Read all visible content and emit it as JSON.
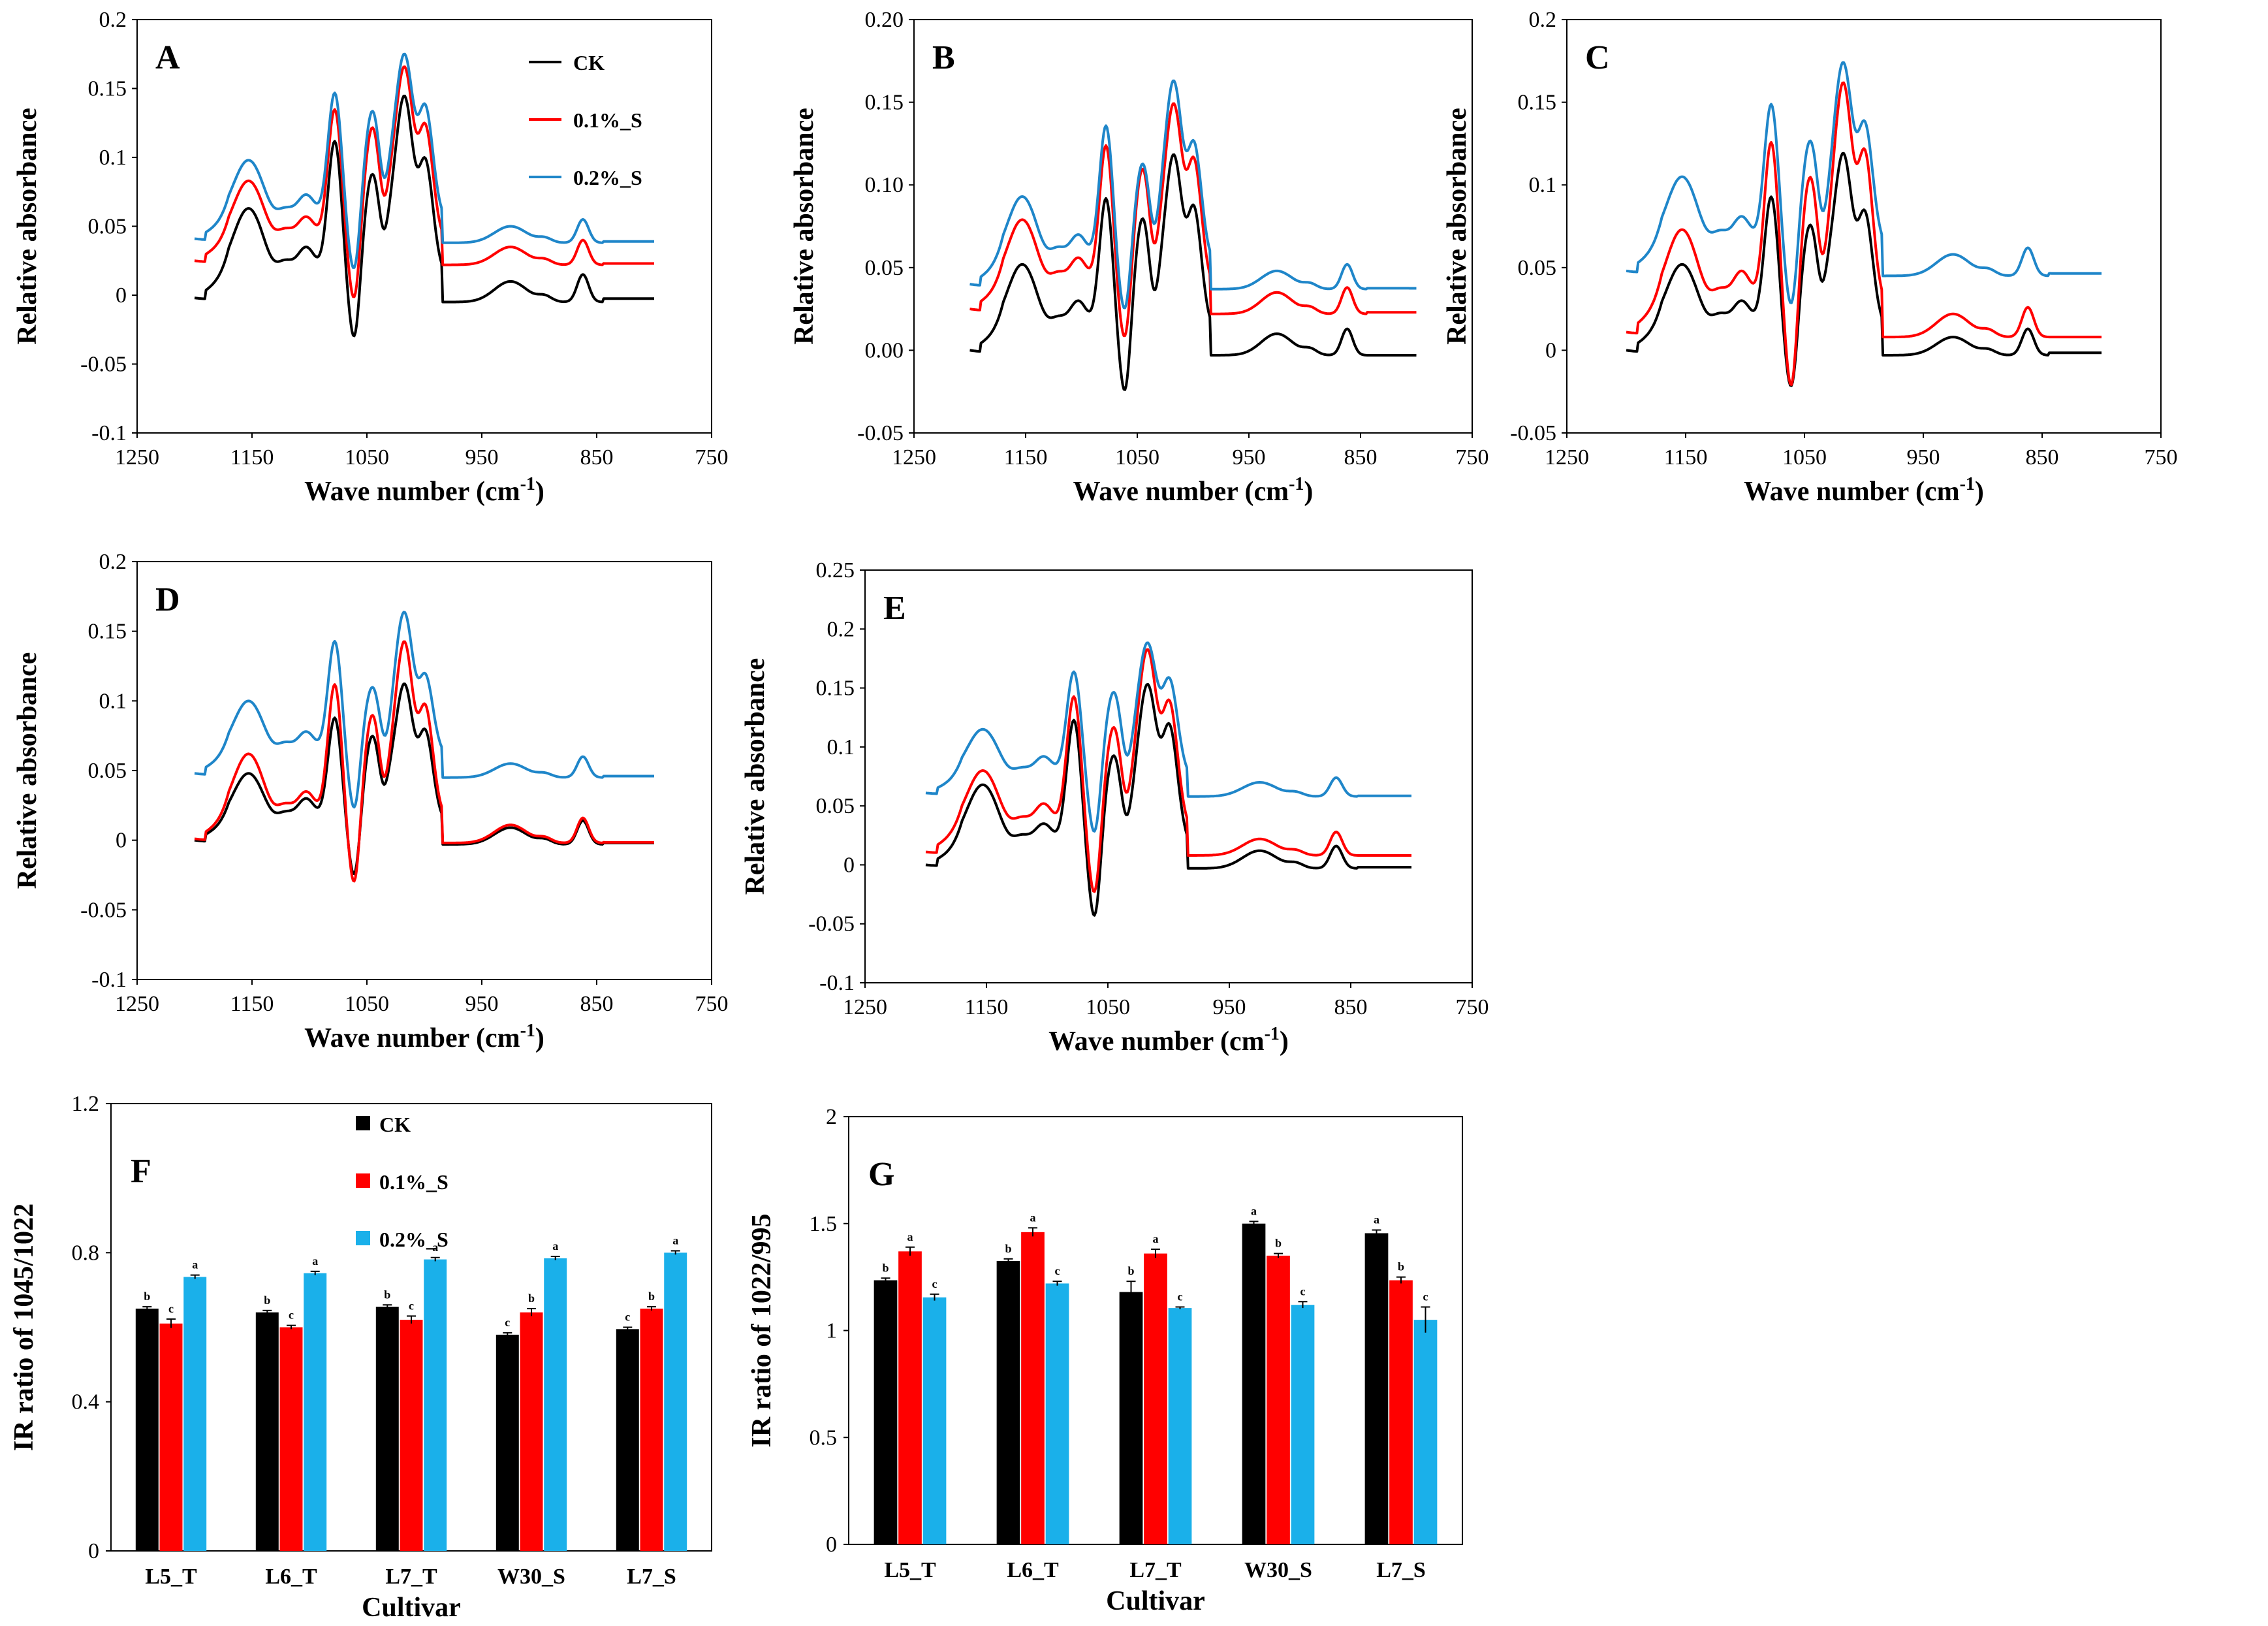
{
  "colors": {
    "CK": "#000000",
    "S01": "#ff0000",
    "S02": "#1f86c9",
    "S02_bar": "#1ab0ea"
  },
  "legend": {
    "ck": "CK",
    "s01": "0.1%_S",
    "s02": "0.2%_S"
  },
  "chart_data": [
    {
      "id": "A",
      "type": "line",
      "letter": "A",
      "xlabel": "Wave number (cm",
      "xlabel_sup": "-1",
      "xlabel_end": ")",
      "ylabel": "Relative absorbance",
      "xlim": [
        1250,
        750
      ],
      "ylim": [
        -0.1,
        0.2
      ],
      "xticks": [
        "1250",
        "1150",
        "1050",
        "950",
        "850",
        "750"
      ],
      "yticks": [
        "-0.1",
        "-0.05",
        "0",
        "0.05",
        "0.1",
        "0.15",
        "0.2"
      ],
      "show_legend": true,
      "series": [
        {
          "name": "CK",
          "color": "#000000",
          "peaks": [
            0.063,
            0.025,
            0.035,
            0.112,
            -0.04,
            0.088,
            0.027,
            0.147,
            0.1
          ],
          "tail": [
            -0.005,
            0.01,
            0.015,
            0
          ]
        },
        {
          "name": "0.1%_S",
          "color": "#ff0000",
          "peaks": [
            0.083,
            0.048,
            0.057,
            0.135,
            -0.012,
            0.122,
            0.05,
            0.168,
            0.125
          ],
          "tail": [
            0.022,
            0.035,
            0.04,
            0.024
          ]
        },
        {
          "name": "0.2%_S",
          "color": "#1f86c9",
          "peaks": [
            0.098,
            0.063,
            0.073,
            0.147,
            0.01,
            0.134,
            0.063,
            0.177,
            0.139
          ],
          "tail": [
            0.038,
            0.05,
            0.055,
            0.04
          ]
        }
      ]
    },
    {
      "id": "B",
      "type": "line",
      "letter": "B",
      "xlabel": "Wave number (cm",
      "xlabel_sup": "-1",
      "xlabel_end": ")",
      "ylabel": "Relative absorbance",
      "xlim": [
        1250,
        750
      ],
      "ylim": [
        -0.05,
        0.2
      ],
      "xticks": [
        "1250",
        "1150",
        "1050",
        "950",
        "850",
        "750"
      ],
      "yticks": [
        "-0.05",
        "0.00",
        "0.05",
        "0.10",
        "0.15",
        "0.20"
      ],
      "show_legend": false,
      "series": [
        {
          "name": "CK",
          "color": "#000000",
          "peaks": [
            0.052,
            0.02,
            0.03,
            0.092,
            -0.033,
            0.08,
            0.015,
            0.12,
            0.088
          ],
          "tail": [
            -0.003,
            0.01,
            0.013,
            -0.003
          ]
        },
        {
          "name": "0.1%_S",
          "color": "#ff0000",
          "peaks": [
            0.079,
            0.047,
            0.056,
            0.124,
            0.0,
            0.11,
            0.043,
            0.151,
            0.117
          ],
          "tail": [
            0.022,
            0.035,
            0.038,
            0.024
          ]
        },
        {
          "name": "0.2%_S",
          "color": "#1f86c9",
          "peaks": [
            0.093,
            0.062,
            0.07,
            0.136,
            0.018,
            0.113,
            0.055,
            0.165,
            0.127
          ],
          "tail": [
            0.037,
            0.048,
            0.052,
            0.038
          ]
        }
      ]
    },
    {
      "id": "C",
      "type": "line",
      "letter": "C",
      "xlabel": "Wave number (cm",
      "xlabel_sup": "-1",
      "xlabel_end": ")",
      "ylabel": "Relative absorbance",
      "xlim": [
        1250,
        750
      ],
      "ylim": [
        -0.05,
        0.2
      ],
      "xticks": [
        "1250",
        "1150",
        "1050",
        "950",
        "850",
        "750"
      ],
      "yticks": [
        "-0.05",
        "0",
        "0.05",
        "0.1",
        "0.15",
        "0.2"
      ],
      "show_legend": false,
      "series": [
        {
          "name": "CK",
          "color": "#000000",
          "peaks": [
            0.052,
            0.022,
            0.03,
            0.093,
            -0.03,
            0.076,
            0.025,
            0.121,
            0.085
          ],
          "tail": [
            -0.003,
            0.008,
            0.013,
            0.0
          ]
        },
        {
          "name": "0.1%_S",
          "color": "#ff0000",
          "peaks": [
            0.073,
            0.037,
            0.048,
            0.126,
            -0.032,
            0.105,
            0.033,
            0.164,
            0.122
          ],
          "tail": [
            0.008,
            0.022,
            0.026,
            0.008
          ]
        },
        {
          "name": "0.2%_S",
          "color": "#1f86c9",
          "peaks": [
            0.105,
            0.072,
            0.081,
            0.149,
            0.02,
            0.127,
            0.06,
            0.176,
            0.139
          ],
          "tail": [
            0.045,
            0.058,
            0.062,
            0.048
          ]
        }
      ]
    },
    {
      "id": "D",
      "type": "line",
      "letter": "D",
      "xlabel": "Wave number (cm",
      "xlabel_sup": "-1",
      "xlabel_end": ")",
      "ylabel": "Relative absorbance",
      "xlim": [
        1250,
        750
      ],
      "ylim": [
        -0.1,
        0.2
      ],
      "xticks": [
        "1250",
        "1150",
        "1050",
        "950",
        "850",
        "750"
      ],
      "yticks": [
        "-0.1",
        "-0.05",
        "0",
        "0.05",
        "0.1",
        "0.15",
        "0.2"
      ],
      "show_legend": false,
      "series": [
        {
          "name": "CK",
          "color": "#000000",
          "peaks": [
            0.048,
            0.02,
            0.03,
            0.088,
            -0.033,
            0.075,
            0.024,
            0.114,
            0.08
          ],
          "tail": [
            -0.003,
            0.009,
            0.014,
            -0.001
          ]
        },
        {
          "name": "0.1%_S",
          "color": "#ff0000",
          "peaks": [
            0.062,
            0.026,
            0.035,
            0.112,
            -0.04,
            0.09,
            0.022,
            0.145,
            0.098
          ],
          "tail": [
            -0.002,
            0.011,
            0.016,
            -0.001
          ]
        },
        {
          "name": "0.2%_S",
          "color": "#1f86c9",
          "peaks": [
            0.1,
            0.07,
            0.078,
            0.143,
            0.016,
            0.11,
            0.05,
            0.166,
            0.12
          ],
          "tail": [
            0.045,
            0.055,
            0.06,
            0.047
          ]
        }
      ]
    },
    {
      "id": "E",
      "type": "line",
      "letter": "E",
      "xlabel": "Wave number (cm",
      "xlabel_sup": "-1",
      "xlabel_end": ")",
      "ylabel": "Relative absorbance",
      "xlim": [
        1250,
        750
      ],
      "ylim": [
        -0.1,
        0.25
      ],
      "xticks": [
        "1250",
        "1150",
        "1050",
        "950",
        "850",
        "750"
      ],
      "yticks": [
        "-0.1",
        "-0.05",
        "0",
        "0.05",
        "0.1",
        "0.15",
        "0.2",
        "0.25"
      ],
      "show_legend": false,
      "series": [
        {
          "name": "CK",
          "color": "#000000",
          "peaks": [
            0.068,
            0.025,
            0.035,
            0.123,
            -0.055,
            0.093,
            0.013,
            0.155,
            0.12
          ],
          "tail": [
            -0.003,
            0.012,
            0.016,
            -0.001
          ]
        },
        {
          "name": "0.1%_S",
          "color": "#ff0000",
          "peaks": [
            0.08,
            0.04,
            0.052,
            0.143,
            -0.035,
            0.117,
            0.03,
            0.185,
            0.14
          ],
          "tail": [
            0.008,
            0.022,
            0.028,
            0.008
          ]
        },
        {
          "name": "0.2%_S",
          "color": "#1f86c9",
          "peaks": [
            0.115,
            0.082,
            0.092,
            0.164,
            0.018,
            0.147,
            0.065,
            0.19,
            0.159
          ],
          "tail": [
            0.058,
            0.07,
            0.074,
            0.059
          ]
        }
      ]
    },
    {
      "id": "F",
      "type": "bar",
      "letter": "F",
      "xlabel": "Cultivar",
      "ylabel": "IR ratio of 1045/1022",
      "ylim": [
        0,
        1.2
      ],
      "yticks": [
        "0",
        "0.4",
        "0.8",
        "1.2"
      ],
      "categories": [
        "L5_T",
        "L6_T",
        "L7_T",
        "W30_S",
        "L7_S"
      ],
      "show_legend": true,
      "series": [
        {
          "name": "CK",
          "color": "#000000",
          "values": [
            0.65,
            0.64,
            0.655,
            0.58,
            0.595
          ],
          "errors": [
            0.005,
            0.005,
            0.005,
            0.005,
            0.005
          ],
          "letters": [
            "b",
            "b",
            "b",
            "c",
            "c"
          ]
        },
        {
          "name": "0.1%_S",
          "color": "#ff0000",
          "values": [
            0.61,
            0.6,
            0.62,
            0.64,
            0.65
          ],
          "errors": [
            0.012,
            0.005,
            0.01,
            0.01,
            0.005
          ],
          "letters": [
            "c",
            "c",
            "c",
            "b",
            "b"
          ]
        },
        {
          "name": "0.2%_S",
          "color": "#1ab0ea",
          "values": [
            0.735,
            0.745,
            0.782,
            0.785,
            0.8
          ],
          "errors": [
            0.005,
            0.005,
            0.005,
            0.005,
            0.005
          ],
          "letters": [
            "a",
            "a",
            "a",
            "a",
            "a"
          ]
        }
      ]
    },
    {
      "id": "G",
      "type": "bar",
      "letter": "G",
      "xlabel": "Cultivar",
      "ylabel": "IR ratio of 1022/995",
      "ylim": [
        0,
        2
      ],
      "yticks": [
        "0",
        "0.5",
        "1",
        "1.5",
        "2"
      ],
      "categories": [
        "L5_T",
        "L6_T",
        "L7_T",
        "W30_S",
        "L7_S"
      ],
      "show_legend": false,
      "series": [
        {
          "name": "CK",
          "color": "#000000",
          "values": [
            1.235,
            1.325,
            1.18,
            1.5,
            1.455
          ],
          "errors": [
            0.01,
            0.01,
            0.05,
            0.01,
            0.015
          ],
          "letters": [
            "b",
            "b",
            "b",
            "a",
            "a"
          ]
        },
        {
          "name": "0.1%_S",
          "color": "#ff0000",
          "values": [
            1.37,
            1.46,
            1.36,
            1.35,
            1.235
          ],
          "errors": [
            0.02,
            0.02,
            0.02,
            0.01,
            0.015
          ],
          "letters": [
            "a",
            "a",
            "a",
            "b",
            "b"
          ]
        },
        {
          "name": "0.2%_S",
          "color": "#1ab0ea",
          "values": [
            1.155,
            1.22,
            1.105,
            1.12,
            1.05
          ],
          "errors": [
            0.015,
            0.01,
            0.005,
            0.015,
            0.06
          ],
          "letters": [
            "c",
            "c",
            "c",
            "c",
            "c"
          ]
        }
      ]
    }
  ]
}
